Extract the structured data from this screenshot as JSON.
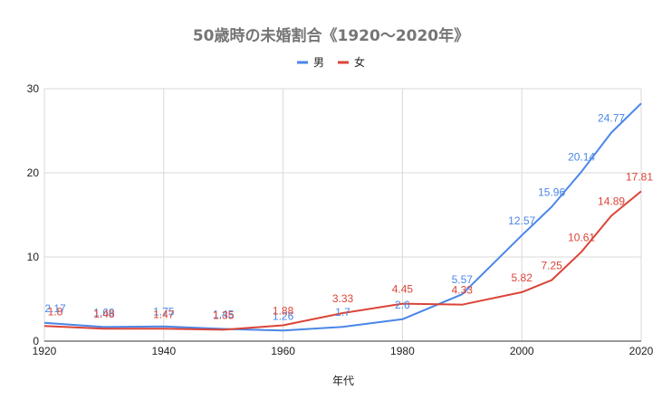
{
  "chart_data": {
    "type": "line",
    "title": "50歳時の未婚割合《1920～2020年》",
    "xlabel": "年代",
    "ylabel": "",
    "xlim": [
      1920,
      2020
    ],
    "ylim": [
      0,
      30
    ],
    "x_ticks": [
      1920,
      1940,
      1960,
      1980,
      2000,
      2020
    ],
    "y_ticks": [
      0,
      10,
      20,
      30
    ],
    "grid": true,
    "legend": "top-center",
    "series": [
      {
        "name": "男",
        "color": "#4a86e8",
        "x": [
          1920,
          1930,
          1940,
          1950,
          1960,
          1970,
          1980,
          1990,
          2000,
          2005,
          2010,
          2015,
          2020
        ],
        "values": [
          2.17,
          1.68,
          1.75,
          1.45,
          1.26,
          1.7,
          2.6,
          5.57,
          12.57,
          15.96,
          20.14,
          24.77,
          28.25
        ],
        "labels": [
          "2.17",
          "1.68",
          "1.75",
          "1.45",
          "1.26",
          "1.7",
          "2.6",
          "5.57",
          "12.57",
          "15.96",
          "20.14",
          "24.77",
          ""
        ]
      },
      {
        "name": "女",
        "color": "#db4437",
        "x": [
          1920,
          1930,
          1940,
          1950,
          1960,
          1970,
          1980,
          1990,
          2000,
          2005,
          2010,
          2015,
          2020
        ],
        "values": [
          1.8,
          1.48,
          1.47,
          1.35,
          1.88,
          3.33,
          4.45,
          4.33,
          5.82,
          7.25,
          10.61,
          14.89,
          17.81
        ],
        "labels": [
          "1.8",
          "1.48",
          "1.47",
          "1.35",
          "1.88",
          "3.33",
          "4.45",
          "4.33",
          "5.82",
          "7.25",
          "10.61",
          "14.89",
          "17.81"
        ]
      }
    ]
  }
}
